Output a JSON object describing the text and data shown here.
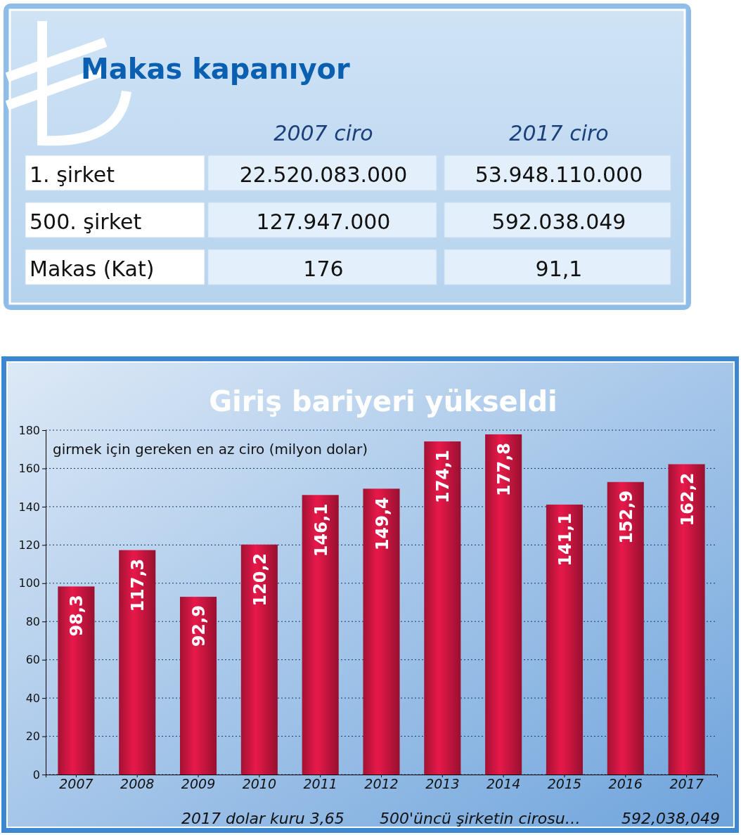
{
  "chart_data": [
    {
      "type": "other",
      "title": "Makas kapanıyor",
      "categories": [
        "2007 ciro",
        "2017 ciro"
      ],
      "y_categories": [
        "1. şirket",
        "500. şirket",
        "Makas (Kat)"
      ],
      "cell_labels": [
        [
          "22.520.083.000",
          "53.948.110.000"
        ],
        [
          "127.947.000",
          "592.038.049"
        ],
        [
          "176",
          "91,1"
        ]
      ]
    },
    {
      "type": "bar",
      "title": "Giriş bariyeri yükseldi",
      "categories": [
        "2007",
        "2008",
        "2009",
        "2010",
        "2011",
        "2012",
        "2013",
        "2014",
        "2015",
        "2016",
        "2017"
      ],
      "values": [
        98.3,
        117.3,
        92.9,
        120.2,
        146.1,
        149.4,
        174.1,
        177.8,
        141.1,
        152.9,
        162.2
      ],
      "value_labels": [
        "98,3",
        "117,3",
        "92,9",
        "120,2",
        "146,1",
        "149,4",
        "174,1",
        "177,8",
        "141,1",
        "152,9",
        "162,2"
      ],
      "color": "#e8194a",
      "ylim": [
        0,
        180
      ],
      "yticks": [
        0,
        20,
        40,
        60,
        80,
        100,
        120,
        140,
        160,
        180
      ],
      "grid": "y",
      "line_style": "dotted",
      "annotations": [
        "girmek için gereken en az ciro (milyon dolar)",
        "2017 dolar kuru 3,65",
        "500'üncü şirketin cirosu…",
        "592,038,049"
      ]
    }
  ]
}
